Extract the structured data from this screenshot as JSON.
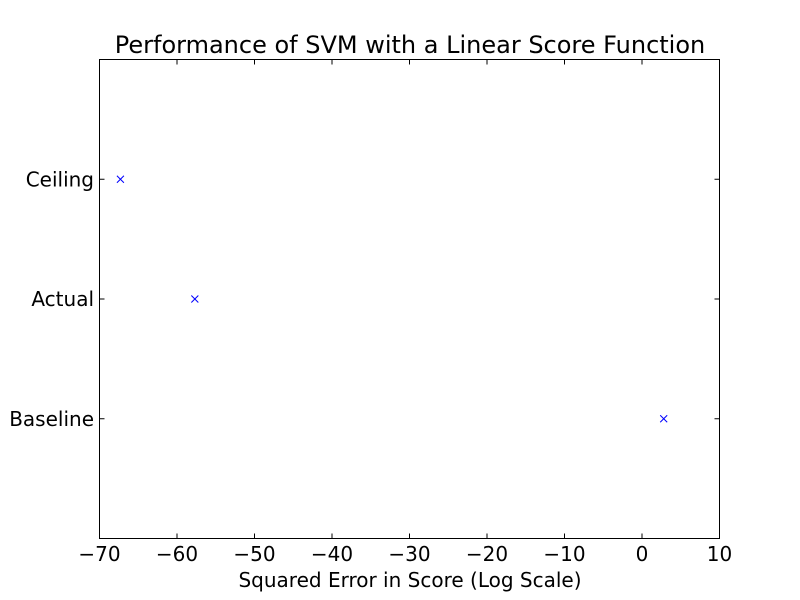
{
  "chart_data": {
    "type": "scatter",
    "title": "Performance of SVM with a Linear Score Function",
    "xlabel": "Squared Error in Score (Log Scale)",
    "ylabel": "",
    "xlim": [
      -70,
      10
    ],
    "xticks": [
      -70,
      -60,
      -50,
      -40,
      -30,
      -20,
      -10,
      0,
      10
    ],
    "xtick_labels": [
      "−70",
      "−60",
      "−50",
      "−40",
      "−30",
      "−20",
      "−10",
      "0",
      "10"
    ],
    "categories": [
      "Baseline",
      "Actual",
      "Ceiling"
    ],
    "marker": "x",
    "marker_color": "#0000ff",
    "grid": false,
    "points": [
      {
        "category": "Ceiling",
        "x": -67.3
      },
      {
        "category": "Actual",
        "x": -57.7
      },
      {
        "category": "Baseline",
        "x": 2.8
      }
    ]
  }
}
